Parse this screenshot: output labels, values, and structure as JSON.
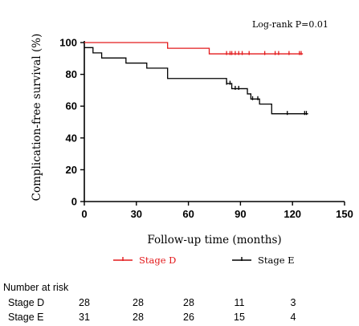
{
  "chart_data": {
    "type": "line",
    "step": true,
    "title": "",
    "annotation": "Log-rank P=0.01",
    "xlabel": "Follow-up time (months)",
    "ylabel": "Complication-free survival (%)",
    "xlim": [
      0,
      150
    ],
    "ylim": [
      0,
      100
    ],
    "xticks": [
      0,
      30,
      60,
      90,
      120,
      150
    ],
    "yticks": [
      0,
      20,
      40,
      60,
      80,
      100
    ],
    "grid": false,
    "legend_position": "bottom",
    "series": [
      {
        "name": "Stage D",
        "color": "#e31a1c",
        "steps": [
          [
            0,
            100
          ],
          [
            48,
            96.4
          ],
          [
            72,
            92.9
          ],
          [
            126,
            92.9
          ]
        ],
        "censor_times": [
          82,
          84,
          85,
          87,
          89,
          91,
          95,
          104,
          110,
          112,
          118,
          124,
          125
        ]
      },
      {
        "name": "Stage E",
        "color": "#000000",
        "steps": [
          [
            0,
            96.8
          ],
          [
            5,
            93.5
          ],
          [
            10,
            90.3
          ],
          [
            24,
            87.1
          ],
          [
            36,
            83.9
          ],
          [
            48,
            77.4
          ],
          [
            82,
            74.2
          ],
          [
            85,
            71.0
          ],
          [
            94,
            67.7
          ],
          [
            96,
            64.5
          ],
          [
            101,
            61.3
          ],
          [
            108,
            55.2
          ],
          [
            129,
            55.2
          ]
        ],
        "censor_times": [
          82,
          84,
          87,
          89,
          97,
          100,
          117,
          127,
          128
        ]
      }
    ],
    "risk_table": {
      "header": "Number at risk",
      "rows": [
        {
          "label": "Stage D",
          "values": [
            "28",
            "28",
            "28",
            "11",
            "3"
          ]
        },
        {
          "label": "Stage E",
          "values": [
            "31",
            "28",
            "26",
            "15",
            "4"
          ]
        }
      ]
    }
  }
}
